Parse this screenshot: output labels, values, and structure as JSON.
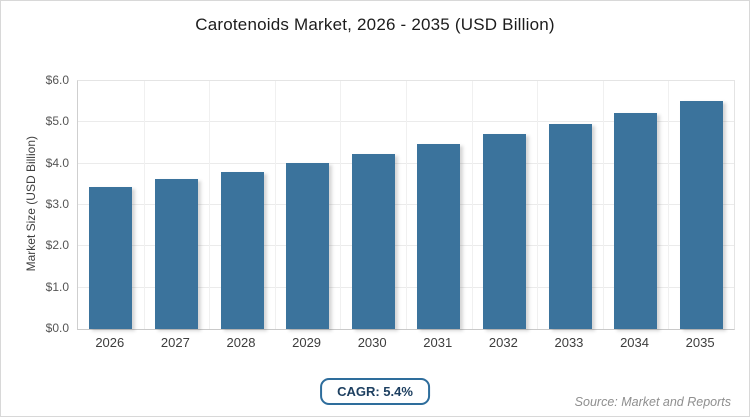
{
  "chart_data": {
    "type": "bar",
    "title": "Carotenoids Market, 2026 - 2035 (USD Billion)",
    "categories": [
      "2026",
      "2027",
      "2028",
      "2029",
      "2030",
      "2031",
      "2032",
      "2033",
      "2034",
      "2035"
    ],
    "values": [
      3.43,
      3.62,
      3.81,
      4.02,
      4.24,
      4.47,
      4.71,
      4.96,
      5.23,
      5.52
    ],
    "xlabel": "",
    "ylabel": "Market Size (USD Billion)",
    "ylim": [
      0,
      6
    ],
    "ytick_labels": [
      "$0.0",
      "$1.0",
      "$2.0",
      "$3.0",
      "$4.0",
      "$5.0",
      "$6.0"
    ],
    "grid": true,
    "legend": false,
    "bar_color": "#3b739c"
  },
  "footer": {
    "cagr_label": "CAGR: 5.4%",
    "source": "Source: Market and Reports"
  },
  "colors": {
    "bar": "#3b739c",
    "badge_border": "#2e6d9c",
    "badge_text": "#1d3f60",
    "gridline": "#ebebeb",
    "canvas_border": "#d8d8d8"
  }
}
